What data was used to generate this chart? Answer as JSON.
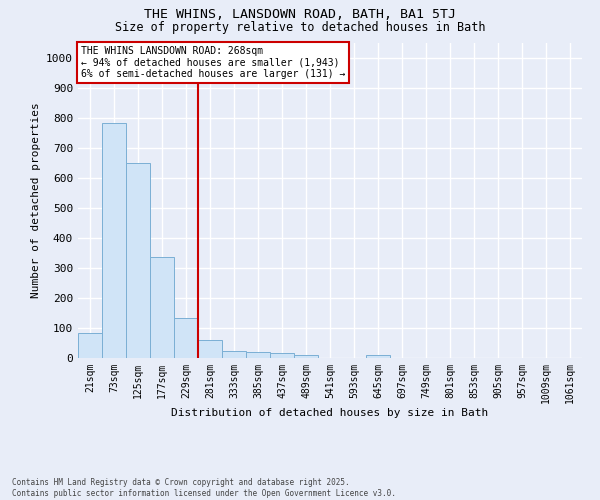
{
  "title_line1": "THE WHINS, LANSDOWN ROAD, BATH, BA1 5TJ",
  "title_line2": "Size of property relative to detached houses in Bath",
  "xlabel": "Distribution of detached houses by size in Bath",
  "ylabel": "Number of detached properties",
  "bin_labels": [
    "21sqm",
    "73sqm",
    "125sqm",
    "177sqm",
    "229sqm",
    "281sqm",
    "333sqm",
    "385sqm",
    "437sqm",
    "489sqm",
    "541sqm",
    "593sqm",
    "645sqm",
    "697sqm",
    "749sqm",
    "801sqm",
    "853sqm",
    "905sqm",
    "957sqm",
    "1009sqm",
    "1061sqm"
  ],
  "bar_values": [
    83,
    783,
    648,
    335,
    133,
    57,
    23,
    20,
    14,
    9,
    0,
    0,
    7,
    0,
    0,
    0,
    0,
    0,
    0,
    0,
    0
  ],
  "bar_color": "#d0e4f7",
  "bar_edge_color": "#7bafd4",
  "vline_x_idx": 4.5,
  "vline_color": "#cc0000",
  "annotation_text": "THE WHINS LANSDOWN ROAD: 268sqm\n← 94% of detached houses are smaller (1,943)\n6% of semi-detached houses are larger (131) →",
  "annotation_edge_color": "#cc0000",
  "ylim_max": 1050,
  "yticks": [
    0,
    100,
    200,
    300,
    400,
    500,
    600,
    700,
    800,
    900,
    1000
  ],
  "bg_color": "#e8edf8",
  "grid_color": "#d5dbe8",
  "footnote_line1": "Contains HM Land Registry data © Crown copyright and database right 2025.",
  "footnote_line2": "Contains public sector information licensed under the Open Government Licence v3.0."
}
